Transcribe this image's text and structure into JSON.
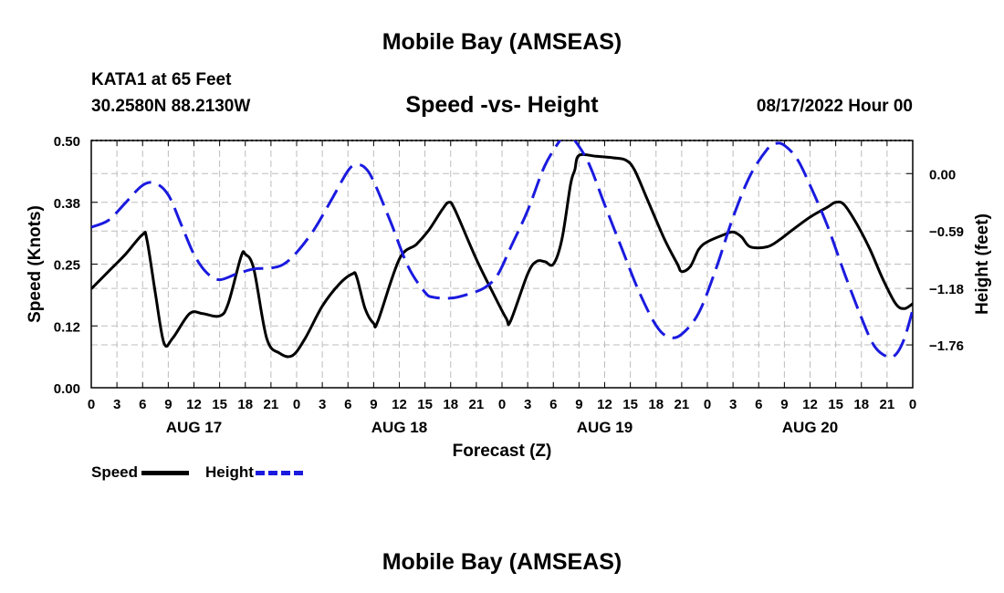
{
  "page_title": "Mobile Bay (AMSEAS)",
  "station": {
    "name_line": "KATA1 at 65 Feet",
    "coords_line": "30.2580N  88.2130W",
    "run_time": "08/17/2022 Hour 00"
  },
  "footer_title": "Mobile Bay (AMSEAS)",
  "legend": [
    {
      "label": "Speed",
      "color": "#000000"
    },
    {
      "label": "Height",
      "color": "#1a1adf"
    }
  ],
  "chart_data": {
    "type": "line",
    "title": "Speed -vs- Height",
    "xlabel": "Forecast (Z)",
    "ylabel_left": "Speed (Knots)",
    "ylabel_right": "Height (feet)",
    "x_unit": "forecast hours from 08/17/2022 00Z",
    "xlim": [
      0,
      96
    ],
    "ylim_left": [
      0,
      0.5
    ],
    "ylim_right": [
      -2.2,
      0.34
    ],
    "left_ticks": [
      {
        "value": 0.0,
        "label": "0.00"
      },
      {
        "value": 0.125,
        "label": "0.12"
      },
      {
        "value": 0.25,
        "label": "0.25"
      },
      {
        "value": 0.375,
        "label": "0.38"
      },
      {
        "value": 0.5,
        "label": "0.50"
      }
    ],
    "right_ticks": [
      {
        "value": 0.0,
        "label": "0.00"
      },
      {
        "value": -0.59,
        "label": "−0.59"
      },
      {
        "value": -1.18,
        "label": "−1.18"
      },
      {
        "value": -1.76,
        "label": "−1.76"
      }
    ],
    "x_ticks": [
      "0",
      "3",
      "6",
      "9",
      "12",
      "15",
      "18",
      "21",
      "0",
      "3",
      "6",
      "9",
      "12",
      "15",
      "18",
      "21",
      "0",
      "3",
      "6",
      "9",
      "12",
      "15",
      "18",
      "21",
      "0",
      "3",
      "6",
      "9",
      "12",
      "15",
      "18",
      "21",
      "0"
    ],
    "day_labels": [
      {
        "x": 12,
        "label": "AUG 17"
      },
      {
        "x": 36,
        "label": "AUG 18"
      },
      {
        "x": 60,
        "label": "AUG 19"
      },
      {
        "x": 84,
        "label": "AUG 20"
      }
    ],
    "grid": true,
    "series": [
      {
        "name": "Speed",
        "axis": "left",
        "color": "#000000",
        "dash": "solid",
        "points": [
          [
            0,
            0.2
          ],
          [
            2,
            0.235
          ],
          [
            4,
            0.27
          ],
          [
            6,
            0.31
          ],
          [
            6.5,
            0.3
          ],
          [
            7.5,
            0.19
          ],
          [
            8.5,
            0.09
          ],
          [
            9.5,
            0.1
          ],
          [
            11.5,
            0.15
          ],
          [
            13,
            0.15
          ],
          [
            15,
            0.145
          ],
          [
            16,
            0.17
          ],
          [
            17.5,
            0.265
          ],
          [
            18,
            0.27
          ],
          [
            19,
            0.24
          ],
          [
            20.5,
            0.1
          ],
          [
            22,
            0.07
          ],
          [
            23.5,
            0.065
          ],
          [
            25,
            0.1
          ],
          [
            27,
            0.165
          ],
          [
            29,
            0.21
          ],
          [
            30.5,
            0.23
          ],
          [
            31,
            0.225
          ],
          [
            32,
            0.16
          ],
          [
            33,
            0.13
          ],
          [
            33.5,
            0.135
          ],
          [
            36,
            0.26
          ],
          [
            38,
            0.29
          ],
          [
            39.5,
            0.32
          ],
          [
            41,
            0.36
          ],
          [
            41.8,
            0.375
          ],
          [
            42.5,
            0.36
          ],
          [
            45,
            0.26
          ],
          [
            47,
            0.19
          ],
          [
            48.5,
            0.14
          ],
          [
            49,
            0.135
          ],
          [
            51,
            0.23
          ],
          [
            52,
            0.255
          ],
          [
            53,
            0.255
          ],
          [
            54,
            0.25
          ],
          [
            55,
            0.3
          ],
          [
            56,
            0.41
          ],
          [
            56.5,
            0.44
          ],
          [
            57,
            0.47
          ],
          [
            59,
            0.468
          ],
          [
            61,
            0.465
          ],
          [
            62.5,
            0.46
          ],
          [
            63.5,
            0.44
          ],
          [
            65,
            0.38
          ],
          [
            67,
            0.3
          ],
          [
            68.5,
            0.25
          ],
          [
            69,
            0.235
          ],
          [
            70,
            0.245
          ],
          [
            71,
            0.28
          ],
          [
            72,
            0.295
          ],
          [
            74,
            0.31
          ],
          [
            75,
            0.315
          ],
          [
            76,
            0.305
          ],
          [
            77,
            0.285
          ],
          [
            79,
            0.285
          ],
          [
            80.5,
            0.3
          ],
          [
            82,
            0.32
          ],
          [
            84,
            0.345
          ],
          [
            86,
            0.365
          ],
          [
            87,
            0.375
          ],
          [
            88,
            0.37
          ],
          [
            89.5,
            0.33
          ],
          [
            91,
            0.28
          ],
          [
            92.5,
            0.22
          ],
          [
            94,
            0.17
          ],
          [
            95,
            0.16
          ],
          [
            96,
            0.17
          ]
        ]
      },
      {
        "name": "Height",
        "axis": "right",
        "color": "#1a1adf",
        "dash": "dashed",
        "points": [
          [
            0,
            -0.55
          ],
          [
            2,
            -0.48
          ],
          [
            4,
            -0.3
          ],
          [
            6,
            -0.12
          ],
          [
            7.5,
            -0.1
          ],
          [
            9,
            -0.22
          ],
          [
            10.5,
            -0.52
          ],
          [
            12,
            -0.83
          ],
          [
            13.5,
            -1.02
          ],
          [
            15,
            -1.09
          ],
          [
            17,
            -1.03
          ],
          [
            19,
            -0.98
          ],
          [
            21,
            -0.97
          ],
          [
            22.5,
            -0.93
          ],
          [
            24,
            -0.81
          ],
          [
            26,
            -0.58
          ],
          [
            28,
            -0.28
          ],
          [
            30,
            0.03
          ],
          [
            31,
            0.09
          ],
          [
            32,
            0.06
          ],
          [
            33,
            -0.08
          ],
          [
            35,
            -0.5
          ],
          [
            37,
            -0.95
          ],
          [
            39,
            -1.22
          ],
          [
            40,
            -1.27
          ],
          [
            42,
            -1.28
          ],
          [
            44,
            -1.24
          ],
          [
            46,
            -1.17
          ],
          [
            47.5,
            -1.04
          ],
          [
            49,
            -0.76
          ],
          [
            51,
            -0.38
          ],
          [
            53,
            0.08
          ],
          [
            55,
            0.37
          ],
          [
            55.5,
            0.42
          ],
          [
            56,
            0.4
          ],
          [
            58,
            0.13
          ],
          [
            60,
            -0.32
          ],
          [
            62,
            -0.77
          ],
          [
            64,
            -1.21
          ],
          [
            66,
            -1.56
          ],
          [
            67.5,
            -1.68
          ],
          [
            69,
            -1.65
          ],
          [
            71,
            -1.43
          ],
          [
            73,
            -0.98
          ],
          [
            75,
            -0.45
          ],
          [
            77,
            -0.02
          ],
          [
            79,
            0.25
          ],
          [
            80,
            0.31
          ],
          [
            81,
            0.29
          ],
          [
            82.5,
            0.15
          ],
          [
            84,
            -0.12
          ],
          [
            86,
            -0.53
          ],
          [
            88,
            -1.02
          ],
          [
            90,
            -1.48
          ],
          [
            91.5,
            -1.77
          ],
          [
            93,
            -1.88
          ],
          [
            94,
            -1.86
          ],
          [
            95,
            -1.7
          ],
          [
            96,
            -1.4
          ]
        ]
      }
    ]
  }
}
